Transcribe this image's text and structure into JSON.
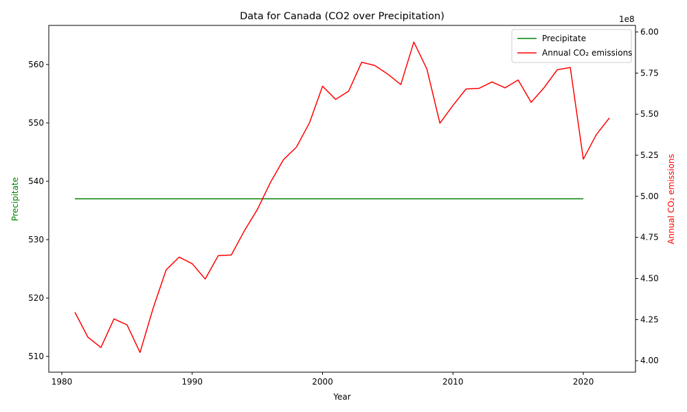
{
  "chart_data": {
    "type": "line",
    "title": "Data for Canada (CO2 over Precipitation)",
    "xlabel": "Year",
    "xlim": [
      1979,
      2024
    ],
    "x_ticks": [
      1980,
      1990,
      2000,
      2010,
      2020
    ],
    "left_axis": {
      "label": "Precipitate",
      "color": "#008000",
      "ylim": [
        507.3,
        566.7
      ],
      "ticks": [
        510,
        520,
        530,
        540,
        550,
        560
      ]
    },
    "right_axis": {
      "label": "Annual CO₂ emissions",
      "color": "#ff0000",
      "ylim": [
        393000000,
        604000000
      ],
      "ticks": [
        400000000,
        425000000,
        450000000,
        475000000,
        500000000,
        525000000,
        550000000,
        575000000,
        600000000
      ],
      "tick_labels": [
        "4.00",
        "4.25",
        "4.50",
        "4.75",
        "5.00",
        "5.25",
        "5.50",
        "5.75",
        "6.00"
      ],
      "offset_label": "1e8"
    },
    "legend": {
      "position": "top-right"
    },
    "series": [
      {
        "name": "Precipitate",
        "axis": "left",
        "color": "#008000",
        "x": [
          1981,
          2020
        ],
        "values": [
          537,
          537
        ]
      },
      {
        "name": "Annual CO₂ emissions",
        "axis": "right",
        "color": "#ff0000",
        "x": [
          1981,
          1982,
          1983,
          1984,
          1985,
          1986,
          1987,
          1988,
          1989,
          1990,
          1991,
          1992,
          1993,
          1994,
          1995,
          1996,
          1997,
          1998,
          1999,
          2000,
          2001,
          2002,
          2003,
          2004,
          2005,
          2006,
          2007,
          2008,
          2009,
          2010,
          2011,
          2012,
          2013,
          2014,
          2015,
          2016,
          2017,
          2018,
          2019,
          2020,
          2021,
          2022
        ],
        "values": [
          429500000,
          414300000,
          408000000,
          425400000,
          421800000,
          405000000,
          431800000,
          455200000,
          463000000,
          459000000,
          449700000,
          463900000,
          464300000,
          479000000,
          492000000,
          508400000,
          522300000,
          530000000,
          544800000,
          567000000,
          559000000,
          564000000,
          581600000,
          579600000,
          574400000,
          568000000,
          593900000,
          577500000,
          544500000,
          555300000,
          565300000,
          565700000,
          569600000,
          566000000,
          570800000,
          557200000,
          566200000,
          577000000,
          578400000,
          522600000,
          537600000,
          547700000
        ]
      }
    ]
  }
}
